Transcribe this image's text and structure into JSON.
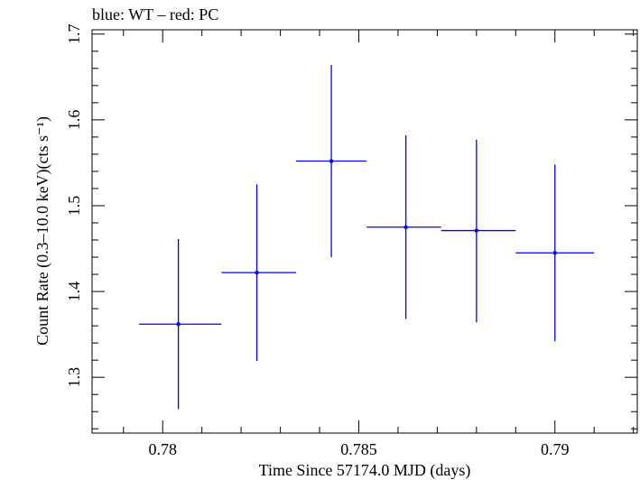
{
  "chart_data": {
    "type": "scatter",
    "title": "blue: WT – red: PC",
    "xlabel": "Time Since 57174.0 MJD (days)",
    "ylabel": "Count Rate (0.3–10.0 keV)(cts s⁻¹)",
    "xlim": [
      0.7782,
      0.7921
    ],
    "ylim": [
      1.235,
      1.705
    ],
    "x_ticks": [
      0.78,
      0.785,
      0.79
    ],
    "x_tick_labels": [
      "0.78",
      "0.785",
      "0.79"
    ],
    "y_ticks": [
      1.3,
      1.4,
      1.5,
      1.6,
      1.7
    ],
    "y_tick_labels": [
      "1.3",
      "1.4",
      "1.5",
      "1.6",
      "1.7"
    ],
    "grid": false,
    "series": [
      {
        "color": "#0000ff",
        "points": [
          {
            "x": 0.7804,
            "x_lo": 0.7794,
            "x_hi": 0.7815,
            "y": 1.362,
            "y_lo": 1.263,
            "y_hi": 1.461
          },
          {
            "x": 0.7824,
            "x_lo": 0.7815,
            "x_hi": 0.7834,
            "y": 1.422,
            "y_lo": 1.319,
            "y_hi": 1.525
          },
          {
            "x": 0.7843,
            "x_lo": 0.7834,
            "x_hi": 0.7852,
            "y": 1.552,
            "y_lo": 1.44,
            "y_hi": 1.664
          },
          {
            "x": 0.7862,
            "x_lo": 0.7852,
            "x_hi": 0.7871,
            "y": 1.475,
            "y_lo": 1.368,
            "y_hi": 1.582
          },
          {
            "x": 0.788,
            "x_lo": 0.7871,
            "x_hi": 0.789,
            "y": 1.471,
            "y_lo": 1.364,
            "y_hi": 1.577
          },
          {
            "x": 0.79,
            "x_lo": 0.789,
            "x_hi": 0.791,
            "y": 1.445,
            "y_lo": 1.342,
            "y_hi": 1.548
          }
        ]
      }
    ]
  }
}
